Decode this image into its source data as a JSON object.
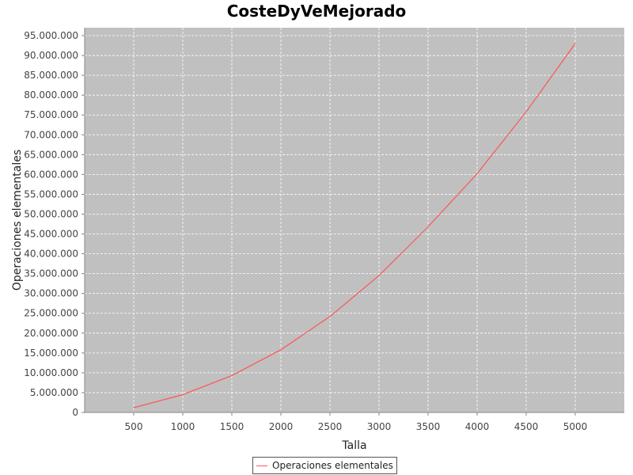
{
  "chart_data": {
    "type": "line",
    "title": "CosteDyVeMejorado",
    "xlabel": "Talla",
    "ylabel": "Operaciones elementales",
    "xlim": [
      0,
      5500
    ],
    "ylim": [
      0,
      97000000
    ],
    "x_ticks": [
      500,
      1000,
      1500,
      2000,
      2500,
      3000,
      3500,
      4000,
      4500,
      5000
    ],
    "x_tick_labels": [
      "500",
      "1000",
      "1500",
      "2000",
      "2500",
      "3000",
      "3500",
      "4000",
      "4500",
      "5000"
    ],
    "y_ticks": [
      0,
      5000000,
      10000000,
      15000000,
      20000000,
      25000000,
      30000000,
      35000000,
      40000000,
      45000000,
      50000000,
      55000000,
      60000000,
      65000000,
      70000000,
      75000000,
      80000000,
      85000000,
      90000000,
      95000000
    ],
    "y_tick_labels": [
      "0",
      "5.000.000",
      "10.000.000",
      "15.000.000",
      "20.000.000",
      "25.000.000",
      "30.000.000",
      "35.000.000",
      "40.000.000",
      "45.000.000",
      "50.000.000",
      "55.000.000",
      "60.000.000",
      "65.000.000",
      "70.000.000",
      "75.000.000",
      "80.000.000",
      "85.000.000",
      "90.000.000",
      "95.000.000"
    ],
    "grid": true,
    "legend_position": "bottom-center",
    "series": [
      {
        "name": "Operaciones elementales",
        "color": "#ff5555",
        "x": [
          500,
          1000,
          1500,
          2000,
          2500,
          3000,
          3500,
          4000,
          4500,
          5000
        ],
        "y": [
          1200000,
          4500000,
          9300000,
          15800000,
          24200000,
          34500000,
          46800000,
          60200000,
          75800000,
          93000000
        ]
      }
    ]
  },
  "colors": {
    "plot_background": "#c0c0c0",
    "grid_line": "#ffffff",
    "axis_line": "#888888"
  }
}
